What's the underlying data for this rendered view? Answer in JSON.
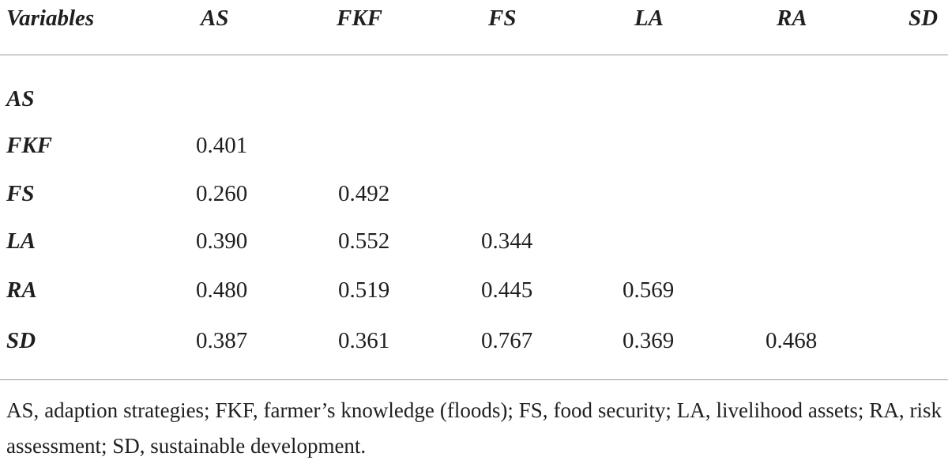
{
  "table": {
    "header": [
      "Variables",
      "AS",
      "FKF",
      "FS",
      "LA",
      "RA",
      "SD"
    ],
    "rows": [
      {
        "label": "AS",
        "values": [
          "",
          "",
          "",
          "",
          "",
          ""
        ]
      },
      {
        "label": "FKF",
        "values": [
          "0.401",
          "",
          "",
          "",
          "",
          ""
        ]
      },
      {
        "label": "FS",
        "values": [
          "0.260",
          "0.492",
          "",
          "",
          "",
          ""
        ]
      },
      {
        "label": "LA",
        "values": [
          "0.390",
          "0.552",
          "0.344",
          "",
          "",
          ""
        ]
      },
      {
        "label": "RA",
        "values": [
          "0.480",
          "0.519",
          "0.445",
          "0.569",
          "",
          ""
        ]
      },
      {
        "label": "SD",
        "values": [
          "0.387",
          "0.361",
          "0.767",
          "0.369",
          "0.468",
          ""
        ]
      }
    ]
  },
  "footnote": "AS, adaption strategies; FKF, farmer’s knowledge (floods); FS, food security; LA, livelihood assets; RA, risk assessment; SD, sustainable development."
}
